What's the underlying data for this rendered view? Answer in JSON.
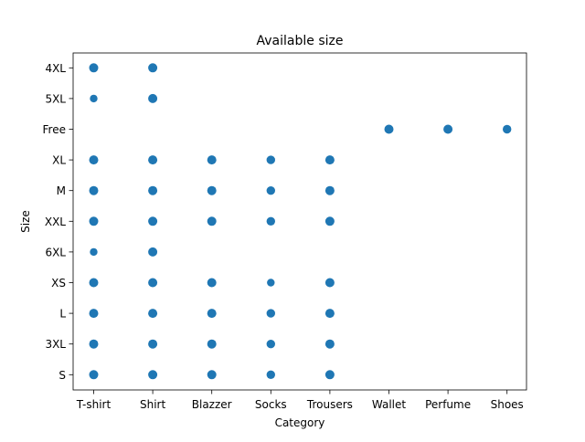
{
  "chart_data": {
    "type": "scatter",
    "title": "Available size",
    "xlabel": "Category",
    "ylabel": "Size",
    "categories": [
      "T-shirt",
      "Shirt",
      "Blazzer",
      "Socks",
      "Trousers",
      "Wallet",
      "Perfume",
      "Shoes"
    ],
    "size_levels": [
      "S",
      "3XL",
      "L",
      "XS",
      "6XL",
      "XXL",
      "M",
      "XL",
      "Free",
      "5XL",
      "4XL"
    ],
    "point_color": "#1f77b4",
    "grid": false,
    "points": [
      {
        "x": "T-shirt",
        "y": "4XL",
        "weight": 3
      },
      {
        "x": "T-shirt",
        "y": "5XL",
        "weight": 1
      },
      {
        "x": "T-shirt",
        "y": "XL",
        "weight": 3
      },
      {
        "x": "T-shirt",
        "y": "M",
        "weight": 3
      },
      {
        "x": "T-shirt",
        "y": "XXL",
        "weight": 3
      },
      {
        "x": "T-shirt",
        "y": "6XL",
        "weight": 1
      },
      {
        "x": "T-shirt",
        "y": "XS",
        "weight": 3
      },
      {
        "x": "T-shirt",
        "y": "L",
        "weight": 3
      },
      {
        "x": "T-shirt",
        "y": "3XL",
        "weight": 3
      },
      {
        "x": "T-shirt",
        "y": "S",
        "weight": 3
      },
      {
        "x": "Shirt",
        "y": "4XL",
        "weight": 3
      },
      {
        "x": "Shirt",
        "y": "5XL",
        "weight": 3
      },
      {
        "x": "Shirt",
        "y": "XL",
        "weight": 3
      },
      {
        "x": "Shirt",
        "y": "M",
        "weight": 3
      },
      {
        "x": "Shirt",
        "y": "XXL",
        "weight": 3
      },
      {
        "x": "Shirt",
        "y": "6XL",
        "weight": 3
      },
      {
        "x": "Shirt",
        "y": "XS",
        "weight": 3
      },
      {
        "x": "Shirt",
        "y": "L",
        "weight": 3
      },
      {
        "x": "Shirt",
        "y": "3XL",
        "weight": 3
      },
      {
        "x": "Shirt",
        "y": "S",
        "weight": 3
      },
      {
        "x": "Blazzer",
        "y": "XL",
        "weight": 3
      },
      {
        "x": "Blazzer",
        "y": "M",
        "weight": 3
      },
      {
        "x": "Blazzer",
        "y": "XXL",
        "weight": 3
      },
      {
        "x": "Blazzer",
        "y": "XS",
        "weight": 3
      },
      {
        "x": "Blazzer",
        "y": "L",
        "weight": 3
      },
      {
        "x": "Blazzer",
        "y": "3XL",
        "weight": 3
      },
      {
        "x": "Blazzer",
        "y": "S",
        "weight": 3
      },
      {
        "x": "Socks",
        "y": "XL",
        "weight": 2
      },
      {
        "x": "Socks",
        "y": "M",
        "weight": 2
      },
      {
        "x": "Socks",
        "y": "XXL",
        "weight": 2
      },
      {
        "x": "Socks",
        "y": "XS",
        "weight": 1
      },
      {
        "x": "Socks",
        "y": "L",
        "weight": 2
      },
      {
        "x": "Socks",
        "y": "3XL",
        "weight": 2
      },
      {
        "x": "Socks",
        "y": "S",
        "weight": 2
      },
      {
        "x": "Trousers",
        "y": "XL",
        "weight": 3
      },
      {
        "x": "Trousers",
        "y": "M",
        "weight": 3
      },
      {
        "x": "Trousers",
        "y": "XXL",
        "weight": 3
      },
      {
        "x": "Trousers",
        "y": "XS",
        "weight": 3
      },
      {
        "x": "Trousers",
        "y": "L",
        "weight": 3
      },
      {
        "x": "Trousers",
        "y": "3XL",
        "weight": 3
      },
      {
        "x": "Trousers",
        "y": "S",
        "weight": 3
      },
      {
        "x": "Wallet",
        "y": "Free",
        "weight": 3
      },
      {
        "x": "Perfume",
        "y": "Free",
        "weight": 3
      },
      {
        "x": "Shoes",
        "y": "Free",
        "weight": 2
      }
    ]
  }
}
